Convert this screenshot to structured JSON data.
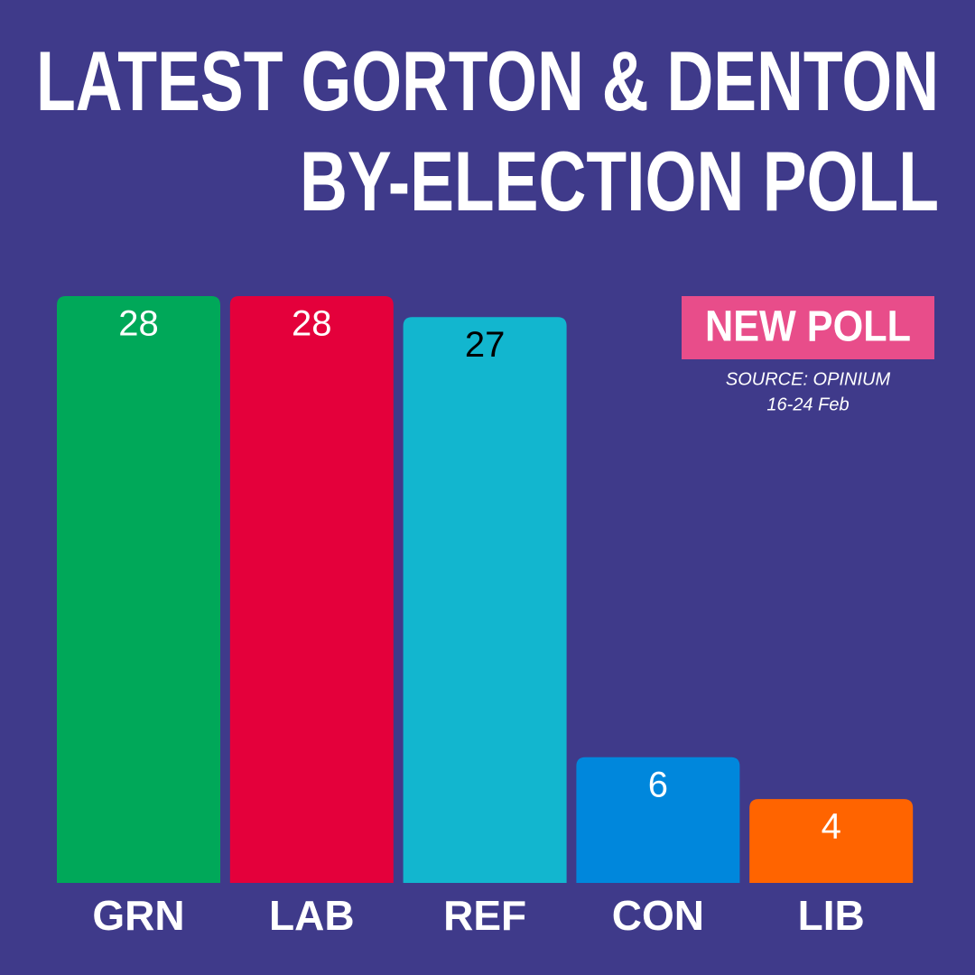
{
  "chart_data": {
    "type": "bar",
    "title": [
      "LATEST GORTON & DENTON",
      "BY-ELECTION POLL"
    ],
    "badge": "NEW POLL",
    "source": "SOURCE: OPINIUM",
    "date": "16-24 Feb",
    "categories": [
      "GRN",
      "LAB",
      "REF",
      "CON",
      "LIB"
    ],
    "values": [
      28,
      28,
      27,
      6,
      4
    ],
    "colors": [
      "#00a859",
      "#e4003b",
      "#12b6cf",
      "#0087dc",
      "#ff6400"
    ],
    "label_colors": [
      "#ffffff",
      "#ffffff",
      "#000000",
      "#ffffff",
      "#ffffff"
    ],
    "ylim": [
      0,
      28
    ]
  }
}
